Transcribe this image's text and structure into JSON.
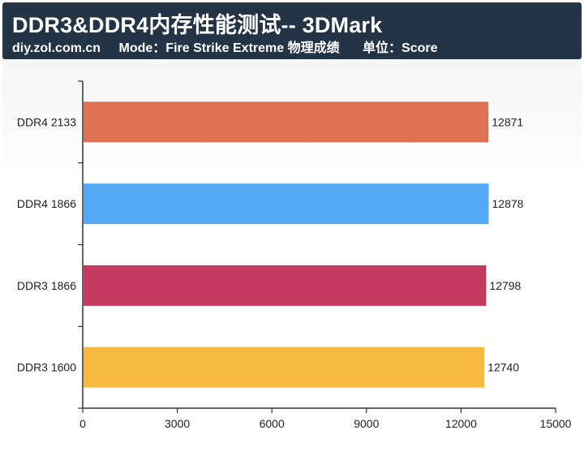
{
  "header": {
    "title": "DDR3&DDR4内存性能测试-- 3DMark",
    "source": "diy.zol.com.cn",
    "mode": "Mode：Fire Strike Extreme 物理成绩",
    "unit": "单位：Score"
  },
  "colors": {
    "header_bg": "#243447",
    "axis": "#333333"
  },
  "chart_data": {
    "type": "bar",
    "orientation": "horizontal",
    "title": "DDR3&DDR4内存性能测试-- 3DMark",
    "categories": [
      "DDR4 2133",
      "DDR4 1866",
      "DDR3 1866",
      "DDR3 1600"
    ],
    "values": [
      12871,
      12878,
      12798,
      12740
    ],
    "value_labels": [
      "12871",
      "12878",
      "12798",
      "12740"
    ],
    "bar_colors": [
      "#de7152",
      "#55aaf8",
      "#c4395f",
      "#f8b941"
    ],
    "xlim": [
      0,
      15000
    ],
    "x_ticks": [
      0,
      3000,
      6000,
      9000,
      12000,
      15000
    ],
    "x_tick_labels": [
      "0",
      "3000",
      "6000",
      "9000",
      "12000",
      "15000"
    ],
    "grid": false,
    "legend": "none"
  }
}
